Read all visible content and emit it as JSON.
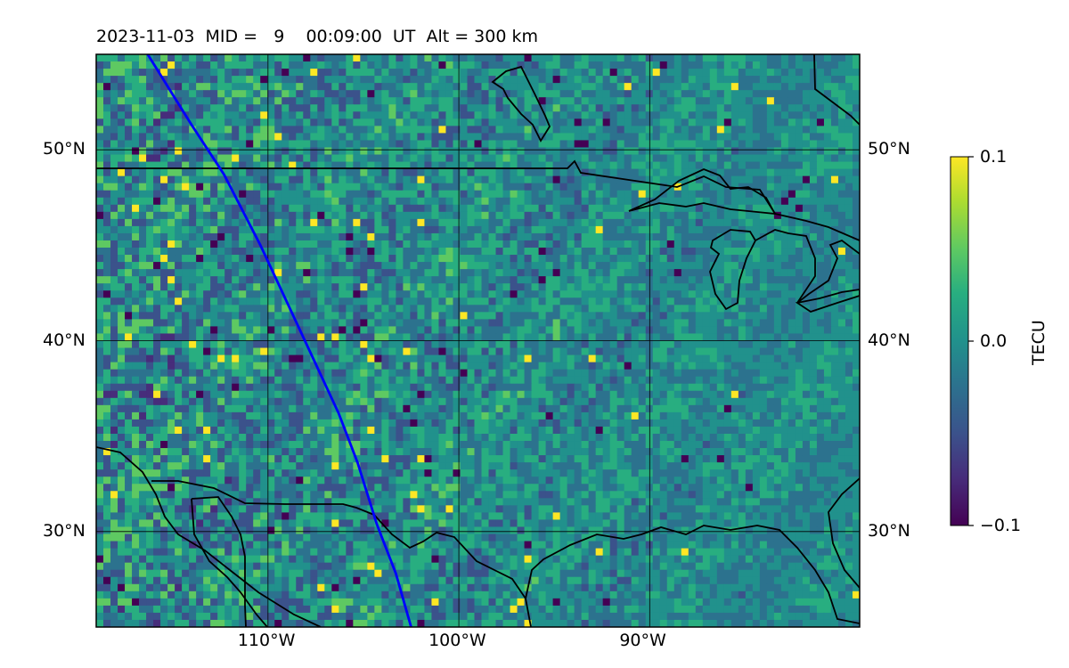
{
  "title": "2023-11-03  MID =   9    00:09:00  UT  Alt = 300 km",
  "map": {
    "lon_range": [
      -119,
      -79
    ],
    "lat_range": [
      25,
      55
    ],
    "lon_ticks": [
      {
        "lon": -110,
        "label": "110°W"
      },
      {
        "lon": -100,
        "label": "100°W"
      },
      {
        "lon": -90,
        "label": "90°W"
      }
    ],
    "lat_ticks": [
      {
        "lat": 50,
        "label": "50°N"
      },
      {
        "lat": 40,
        "label": "40°N"
      },
      {
        "lat": 30,
        "label": "30°N"
      }
    ],
    "grid": true,
    "coastline_color": "#000000",
    "track_color": "#0000ff",
    "colormap": "viridis"
  },
  "colorbar": {
    "label": "TECU",
    "min": -0.1,
    "max": 0.1,
    "ticks": [
      "0.1",
      "0.0",
      "−0.1"
    ]
  },
  "satellite_track": [
    [
      -116.3,
      55
    ],
    [
      -114.0,
      51.3
    ],
    [
      -112.3,
      48.7
    ],
    [
      -110.4,
      45.0
    ],
    [
      -109.0,
      42.0
    ],
    [
      -107.6,
      39.0
    ],
    [
      -106.3,
      36.2
    ],
    [
      -105.3,
      33.6
    ],
    [
      -104.3,
      30.4
    ],
    [
      -103.3,
      27.8
    ],
    [
      -102.5,
      25
    ]
  ]
}
